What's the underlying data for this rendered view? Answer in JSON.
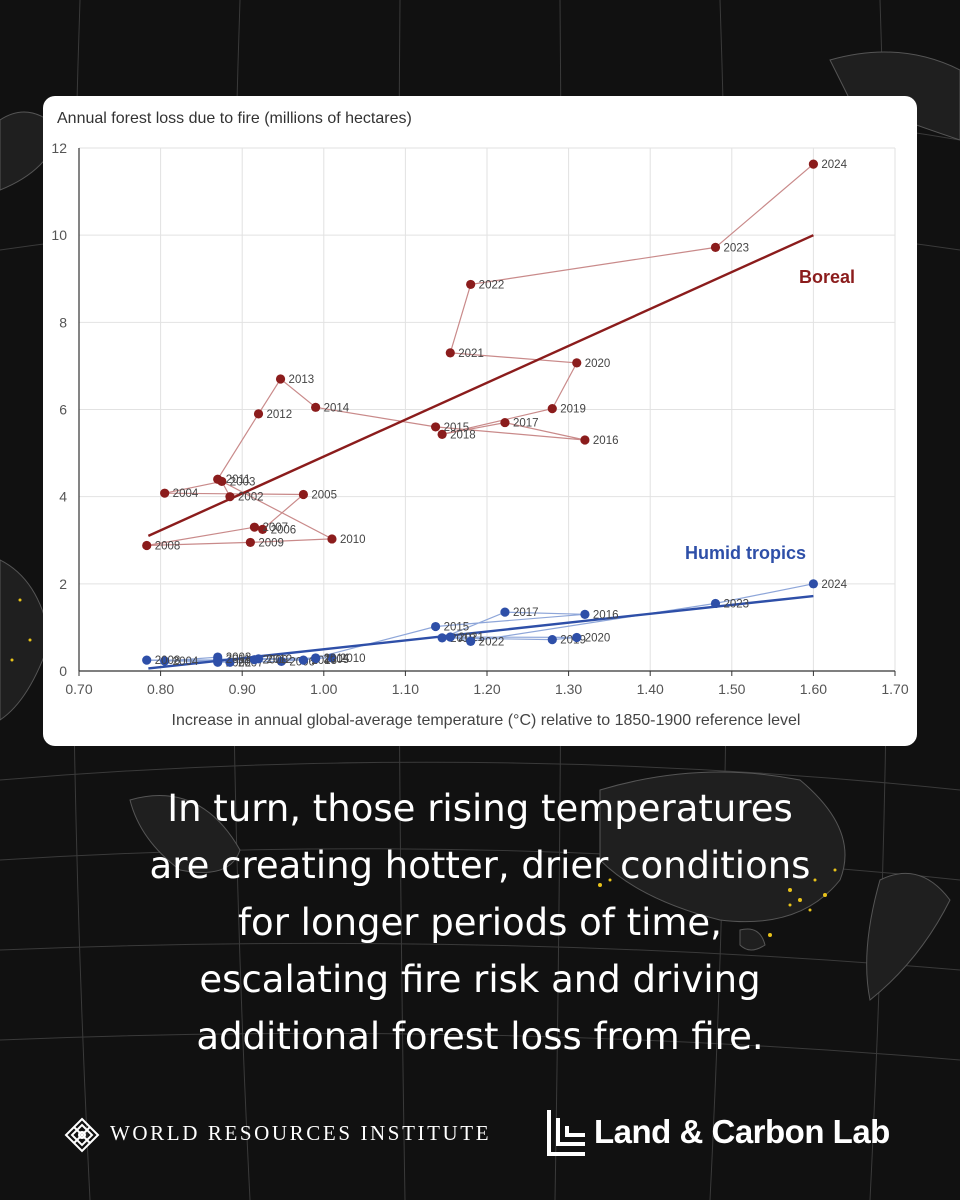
{
  "colors": {
    "background": "#111111",
    "boreal": "#8b1c1c",
    "boreal_light": "#c98a8a",
    "tropics": "#2e4fa8",
    "tropics_light": "#8ea6d9",
    "fire_dots": "#e8c21a"
  },
  "chart_data": {
    "type": "scatter",
    "title": "Annual forest loss due to fire (millions of hectares)",
    "xlabel": "Increase in annual global-average temperature (°C) relative to 1850-1900 reference level",
    "ylabel": "",
    "xlim": [
      0.7,
      1.7
    ],
    "ylim": [
      0,
      12
    ],
    "xticks": [
      "0.70",
      "0.80",
      "0.90",
      "1.00",
      "1.10",
      "1.20",
      "1.30",
      "1.40",
      "1.50",
      "1.60",
      "1.70"
    ],
    "yticks": [
      "0",
      "2",
      "4",
      "6",
      "8",
      "10",
      "12"
    ],
    "grid": true,
    "series": [
      {
        "name": "Boreal",
        "color": "#8b1c1c",
        "trend": [
          [
            0.785,
            3.1
          ],
          [
            1.6,
            10.0
          ]
        ],
        "points": [
          {
            "label": "2002",
            "x": 0.885,
            "y": 4.0
          },
          {
            "label": "2003",
            "x": 0.875,
            "y": 4.35
          },
          {
            "label": "2004",
            "x": 0.805,
            "y": 4.08
          },
          {
            "label": "2005",
            "x": 0.975,
            "y": 4.05
          },
          {
            "label": "2006",
            "x": 0.925,
            "y": 3.25
          },
          {
            "label": "2007",
            "x": 0.915,
            "y": 3.3
          },
          {
            "label": "2008",
            "x": 0.783,
            "y": 2.88
          },
          {
            "label": "2009",
            "x": 0.91,
            "y": 2.95
          },
          {
            "label": "2010",
            "x": 1.01,
            "y": 3.03
          },
          {
            "label": "2011",
            "x": 0.87,
            "y": 4.4
          },
          {
            "label": "2012",
            "x": 0.92,
            "y": 5.9
          },
          {
            "label": "2013",
            "x": 0.947,
            "y": 6.7
          },
          {
            "label": "2014",
            "x": 0.99,
            "y": 6.05
          },
          {
            "label": "2015",
            "x": 1.137,
            "y": 5.6
          },
          {
            "label": "2016",
            "x": 1.32,
            "y": 5.3
          },
          {
            "label": "2017",
            "x": 1.222,
            "y": 5.7
          },
          {
            "label": "2018",
            "x": 1.145,
            "y": 5.43
          },
          {
            "label": "2019",
            "x": 1.28,
            "y": 6.02
          },
          {
            "label": "2020",
            "x": 1.31,
            "y": 7.07
          },
          {
            "label": "2021",
            "x": 1.155,
            "y": 7.3
          },
          {
            "label": "2022",
            "x": 1.18,
            "y": 8.87
          },
          {
            "label": "2023",
            "x": 1.48,
            "y": 9.72
          },
          {
            "label": "2024",
            "x": 1.6,
            "y": 11.63
          }
        ]
      },
      {
        "name": "Humid tropics",
        "color": "#2e4fa8",
        "trend": [
          [
            0.785,
            0.06
          ],
          [
            1.6,
            1.72
          ]
        ],
        "points": [
          {
            "label": "2002",
            "x": 0.87,
            "y": 0.2
          },
          {
            "label": "2003",
            "x": 0.87,
            "y": 0.32
          },
          {
            "label": "2004",
            "x": 0.805,
            "y": 0.23
          },
          {
            "label": "2005",
            "x": 0.99,
            "y": 0.28
          },
          {
            "label": "2006",
            "x": 0.948,
            "y": 0.22
          },
          {
            "label": "2007",
            "x": 0.885,
            "y": 0.2
          },
          {
            "label": "2008",
            "x": 0.783,
            "y": 0.25
          },
          {
            "label": "2009",
            "x": 0.915,
            "y": 0.26
          },
          {
            "label": "2010",
            "x": 1.01,
            "y": 0.3
          },
          {
            "label": "2011",
            "x": 0.87,
            "y": 0.27
          },
          {
            "label": "2012",
            "x": 0.92,
            "y": 0.28
          },
          {
            "label": "2013",
            "x": 0.975,
            "y": 0.25
          },
          {
            "label": "2014",
            "x": 0.99,
            "y": 0.3
          },
          {
            "label": "2015",
            "x": 1.137,
            "y": 1.02
          },
          {
            "label": "2016",
            "x": 1.32,
            "y": 1.3
          },
          {
            "label": "2017",
            "x": 1.222,
            "y": 1.35
          },
          {
            "label": "2018",
            "x": 1.145,
            "y": 0.76
          },
          {
            "label": "2019",
            "x": 1.28,
            "y": 0.72
          },
          {
            "label": "2020",
            "x": 1.31,
            "y": 0.77
          },
          {
            "label": "2021",
            "x": 1.155,
            "y": 0.78
          },
          {
            "label": "2022",
            "x": 1.18,
            "y": 0.68
          },
          {
            "label": "2023",
            "x": 1.48,
            "y": 1.55
          },
          {
            "label": "2024",
            "x": 1.6,
            "y": 2.0
          }
        ]
      }
    ]
  },
  "caption": {
    "line1": "In turn, those rising temperatures",
    "line2": "are creating hotter, drier conditions",
    "line3": "for longer periods of time,",
    "line4": "escalating fire risk and driving",
    "line5": "additional forest loss from fire."
  },
  "footer": {
    "wri_name": "WORLD RESOURCES INSTITUTE",
    "lcl_name": "Land & Carbon Lab",
    "wri_icon": "wri-knot-logo-icon",
    "lcl_icon": "lcl-bracket-logo-icon"
  }
}
